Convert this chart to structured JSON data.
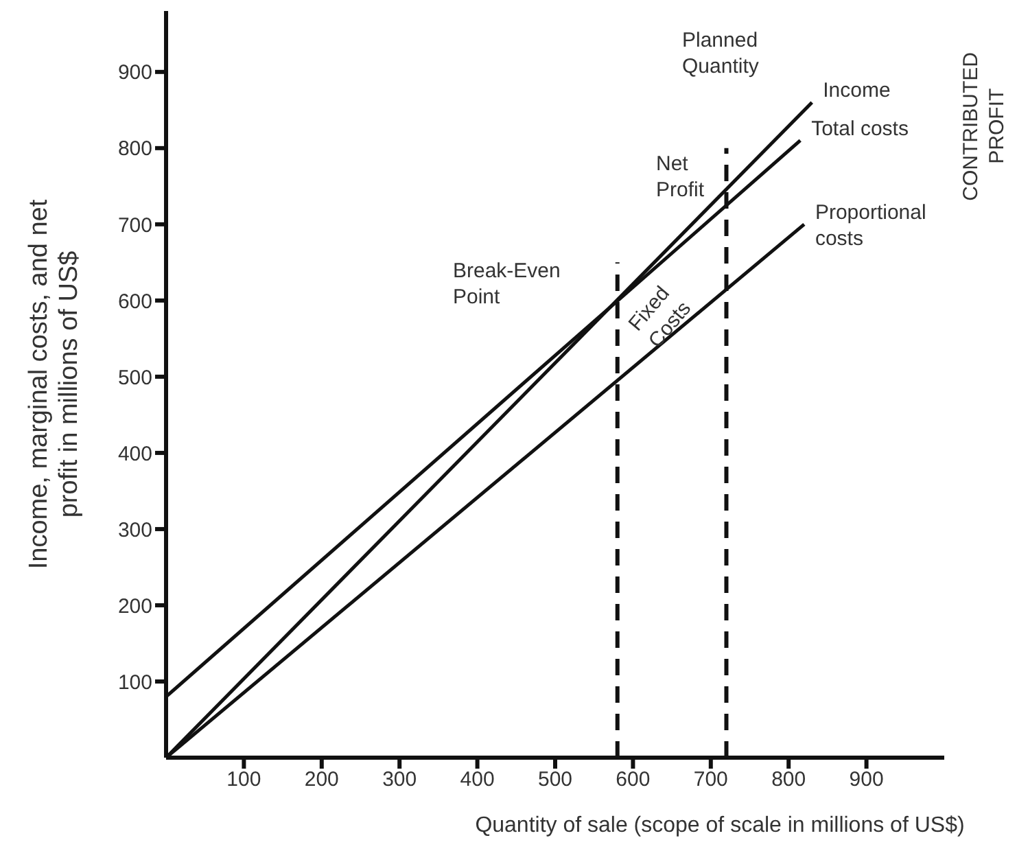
{
  "chart_data": {
    "type": "line",
    "xlabel": "Quantity of sale (scope of scale in millions of US$)",
    "ylabel": "Income, marginal costs, and net profit in millions of US$",
    "xlim": [
      0,
      1000
    ],
    "ylim": [
      0,
      980
    ],
    "xticks": [
      100,
      200,
      300,
      400,
      500,
      600,
      700,
      800,
      900
    ],
    "yticks": [
      100,
      200,
      300,
      400,
      500,
      600,
      700,
      800,
      900
    ],
    "grid": false,
    "legend": false,
    "marker": "none",
    "series": [
      {
        "name": "Income",
        "color": "#111111",
        "x": [
          0,
          830
        ],
        "values": [
          0,
          860
        ],
        "line_style": "solid"
      },
      {
        "name": "Total costs",
        "color": "#111111",
        "x": [
          0,
          815
        ],
        "values": [
          80,
          810
        ],
        "line_style": "solid"
      },
      {
        "name": "Proportional costs",
        "color": "#111111",
        "x": [
          0,
          820
        ],
        "values": [
          0,
          700
        ],
        "line_style": "solid"
      },
      {
        "color": "#111111",
        "x": [
          580,
          580
        ],
        "values": [
          0,
          650
        ],
        "line_style": "dashed"
      },
      {
        "color": "#111111",
        "x": [
          720,
          720
        ],
        "values": [
          0,
          800
        ],
        "line_style": "dashed"
      }
    ],
    "annotations": [
      "Break-Even Point",
      "Planned Quantity",
      "Net Profit",
      "Fixed Costs",
      "CONTRIBUTED PROFIT"
    ]
  }
}
